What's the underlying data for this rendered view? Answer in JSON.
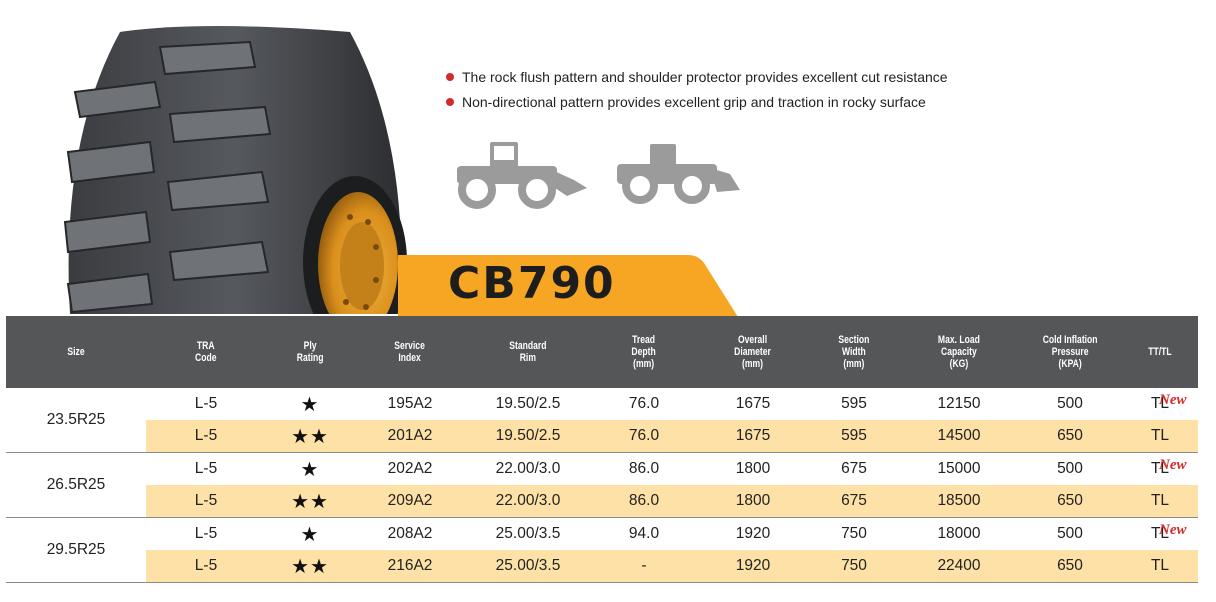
{
  "features": [
    "The rock flush pattern and shoulder protector provides excellent cut resistance",
    "Non-directional pattern provides excellent grip and traction in rocky surface"
  ],
  "model": "CB790",
  "colors": {
    "accent": "#f6a623",
    "header_bg": "#555658",
    "row_alt": "#fde1a6",
    "bullet": "#d32a2a",
    "new_tag": "#d32a2a"
  },
  "headers": [
    [
      "Size"
    ],
    [
      "TRA",
      "Code"
    ],
    [
      "Ply",
      "Rating"
    ],
    [
      "Service",
      "Index"
    ],
    [
      "Standard",
      "Rim"
    ],
    [
      "Tread",
      "Depth",
      "(mm)"
    ],
    [
      "Overall",
      "Diameter",
      "(mm)"
    ],
    [
      "Section",
      "Width",
      "(mm)"
    ],
    [
      "Max. Load",
      "Capacity",
      "(KG)"
    ],
    [
      "Cold Inflation",
      "Pressure",
      "(KPA)"
    ],
    [
      "TT/TL"
    ]
  ],
  "groups": [
    {
      "size": "23.5R25",
      "rows": [
        {
          "tra": "L-5",
          "ply": "★",
          "service": "195A2",
          "rim": "19.50/2.5",
          "tread": "76.0",
          "diameter": "1675",
          "width": "595",
          "load": "12150",
          "pressure": "500",
          "tt": "TL",
          "new": "New"
        },
        {
          "tra": "L-5",
          "ply": "★★",
          "service": "201A2",
          "rim": "19.50/2.5",
          "tread": "76.0",
          "diameter": "1675",
          "width": "595",
          "load": "14500",
          "pressure": "650",
          "tt": "TL",
          "new": ""
        }
      ]
    },
    {
      "size": "26.5R25",
      "rows": [
        {
          "tra": "L-5",
          "ply": "★",
          "service": "202A2",
          "rim": "22.00/3.0",
          "tread": "86.0",
          "diameter": "1800",
          "width": "675",
          "load": "15000",
          "pressure": "500",
          "tt": "TL",
          "new": "New"
        },
        {
          "tra": "L-5",
          "ply": "★★",
          "service": "209A2",
          "rim": "22.00/3.0",
          "tread": "86.0",
          "diameter": "1800",
          "width": "675",
          "load": "18500",
          "pressure": "650",
          "tt": "TL",
          "new": ""
        }
      ]
    },
    {
      "size": "29.5R25",
      "rows": [
        {
          "tra": "L-5",
          "ply": "★",
          "service": "208A2",
          "rim": "25.00/3.5",
          "tread": "94.0",
          "diameter": "1920",
          "width": "750",
          "load": "18000",
          "pressure": "500",
          "tt": "TL",
          "new": "New"
        },
        {
          "tra": "L-5",
          "ply": "★★",
          "service": "216A2",
          "rim": "25.00/3.5",
          "tread": "-",
          "diameter": "1920",
          "width": "750",
          "load": "22400",
          "pressure": "650",
          "tt": "TL",
          "new": ""
        }
      ]
    }
  ]
}
